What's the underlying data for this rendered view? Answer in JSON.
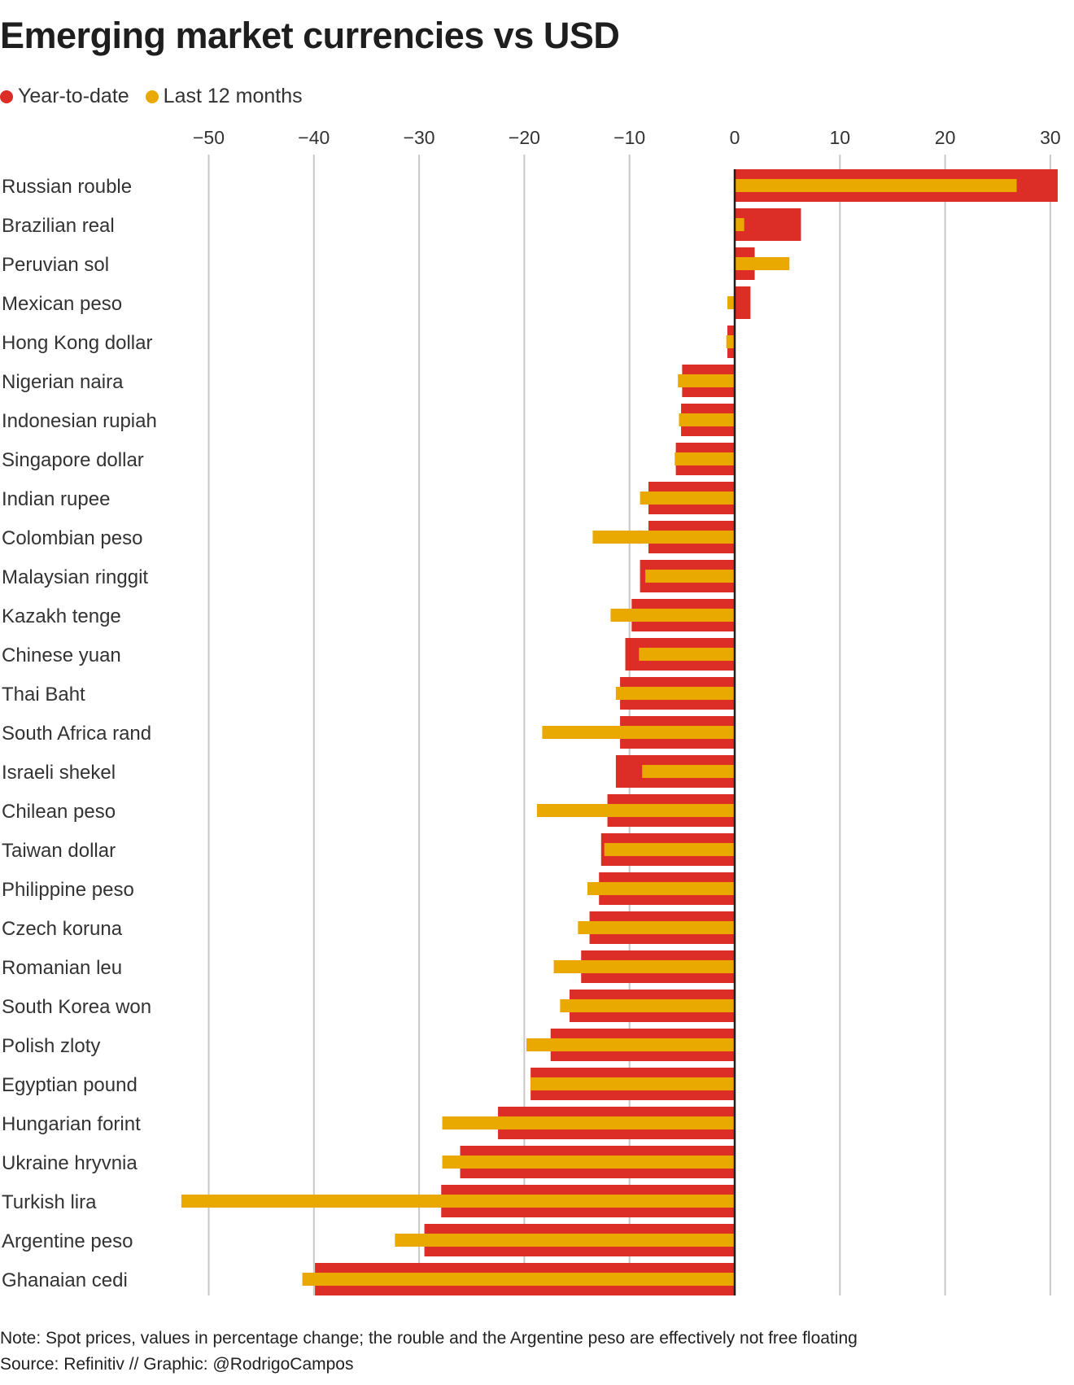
{
  "title": "Emerging market currencies vs USD",
  "colors": {
    "ytd": "#dc2d27",
    "ltm": "#e9a900",
    "grid": "#c8c8c8",
    "axis": "#1e1e1e",
    "text": "#333333"
  },
  "legend": [
    {
      "label": "Year-to-date",
      "color": "#dc2d27"
    },
    {
      "label": "Last 12 months",
      "color": "#e9a900"
    }
  ],
  "chart_data": {
    "type": "bar",
    "orientation": "horizontal",
    "title": "Emerging market currencies vs USD",
    "xlabel": "",
    "ylabel": "",
    "xlim": [
      -55,
      32
    ],
    "x_ticks": [
      -50,
      -40,
      -30,
      -20,
      -10,
      0,
      10,
      20,
      30
    ],
    "x_tick_labels": [
      "−50",
      "−40",
      "−30",
      "−20",
      "−10",
      "0",
      "10",
      "20",
      "30"
    ],
    "grid": true,
    "legend_position": "top-left",
    "units": "percentage change",
    "categories": [
      "Russian rouble",
      "Brazilian real",
      "Peruvian sol",
      "Mexican peso",
      "Hong Kong dollar",
      "Nigerian naira",
      "Indonesian rupiah",
      "Singapore dollar",
      "Indian rupee",
      "Colombian peso",
      "Malaysian ringgit",
      "Kazakh tenge",
      "Chinese yuan",
      "Thai Baht",
      "South Africa rand",
      "Israeli shekel",
      "Chilean peso",
      "Taiwan dollar",
      "Philippine peso",
      "Czech koruna",
      "Romanian leu",
      "South Korea won",
      "Polish zloty",
      "Egyptian pound",
      "Hungarian forint",
      "Ukraine hryvnia",
      "Turkish lira",
      "Argentine peso",
      "Ghanaian cedi"
    ],
    "series": [
      {
        "name": "Year-to-date",
        "values": [
          30.7,
          6.3,
          1.9,
          1.5,
          -0.7,
          -5.0,
          -5.1,
          -5.6,
          -8.2,
          -8.2,
          -9.0,
          -9.8,
          -10.4,
          -10.9,
          -10.9,
          -11.3,
          -12.1,
          -12.7,
          -12.9,
          -13.8,
          -14.6,
          -15.7,
          -17.5,
          -19.4,
          -22.5,
          -26.1,
          -27.9,
          -29.5,
          -39.9
        ]
      },
      {
        "name": "Last 12 months",
        "values": [
          26.8,
          0.9,
          5.2,
          -0.7,
          -0.8,
          -5.4,
          -5.3,
          -5.7,
          -9.0,
          -13.5,
          -8.5,
          -11.8,
          -9.1,
          -11.3,
          -18.3,
          -8.8,
          -18.8,
          -12.4,
          -14.0,
          -14.9,
          -17.2,
          -16.6,
          -19.8,
          -19.4,
          -27.8,
          -27.8,
          -52.6,
          -32.3,
          -41.1
        ]
      }
    ]
  },
  "notes": {
    "note": "Note: Spot prices, values in percentage change; the rouble and the Argentine peso are effectively not free floating",
    "source": "Source: Refinitiv // Graphic: @RodrigoCampos"
  }
}
